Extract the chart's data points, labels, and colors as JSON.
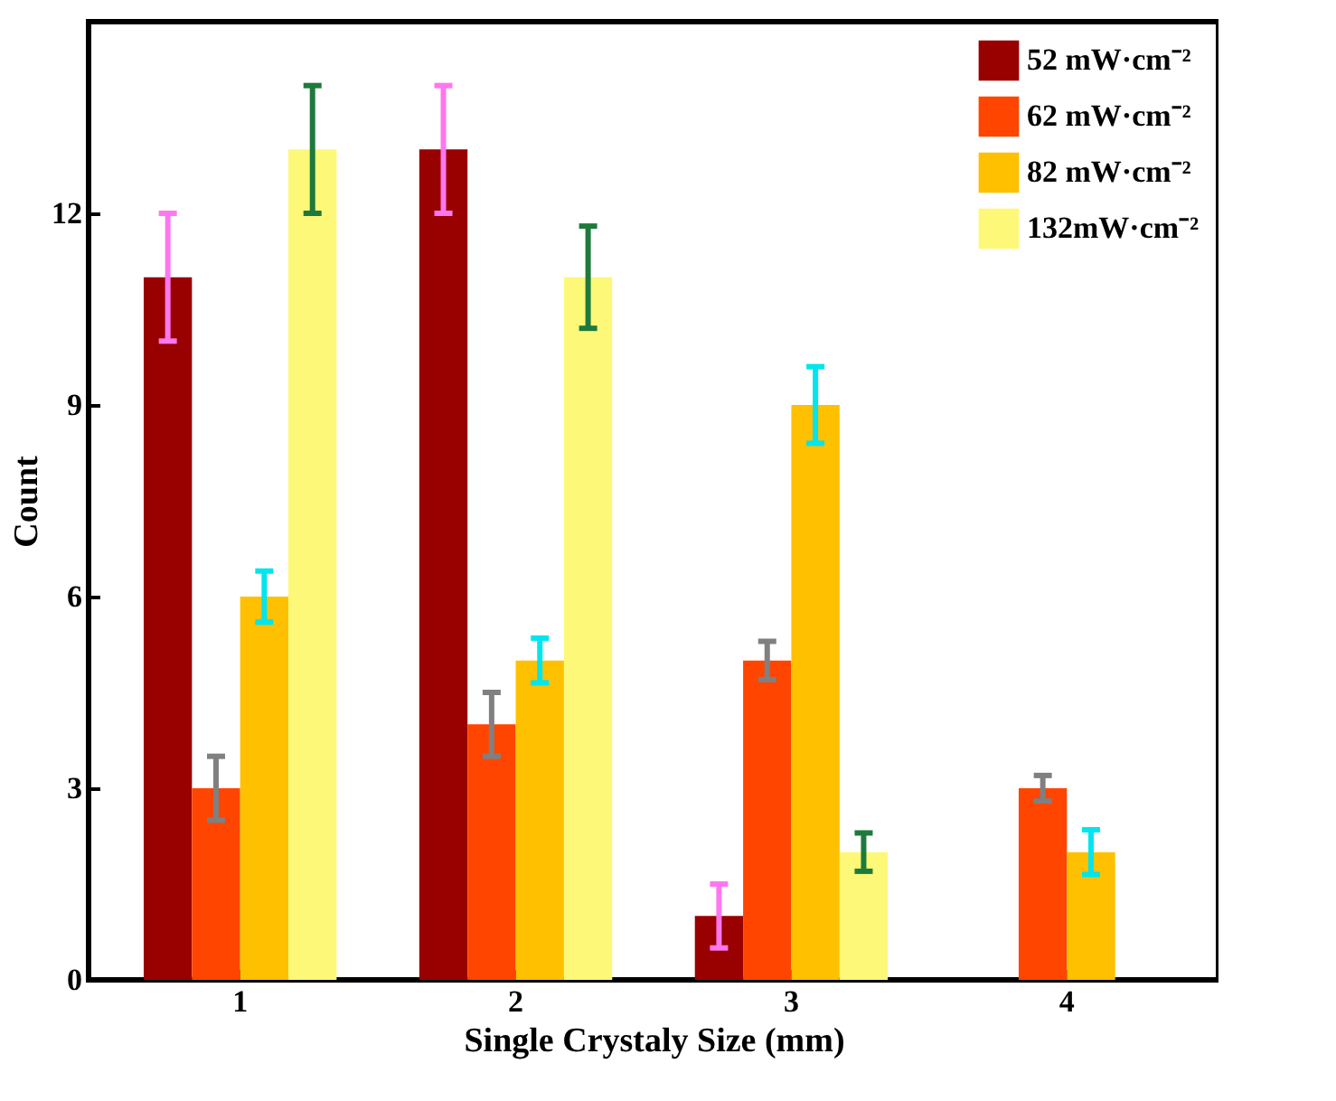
{
  "chart_data": {
    "type": "bar",
    "xlabel": "Single Crystaly Size (mm)",
    "ylabel": "Count",
    "categories": [
      "1",
      "2",
      "3",
      "4"
    ],
    "series": [
      {
        "name": "52 mW·cm⁻²",
        "color": "#990000",
        "values": [
          11,
          13,
          1,
          null
        ],
        "errors": [
          1,
          1,
          0.5,
          null
        ]
      },
      {
        "name": "62 mW·cm⁻²",
        "color": "#ff4500",
        "values": [
          3,
          4,
          5,
          3
        ],
        "errors": [
          0.5,
          0.5,
          0.3,
          0.2
        ]
      },
      {
        "name": "82 mW·cm⁻²",
        "color": "#ffc000",
        "values": [
          6,
          5,
          9,
          2
        ],
        "errors": [
          0.4,
          0.35,
          0.6,
          0.35
        ]
      },
      {
        "name": "132mW·cm⁻²",
        "color": "#fdf878",
        "values": [
          13,
          11,
          2,
          null
        ],
        "errors": [
          1,
          0.8,
          0.3,
          null
        ]
      }
    ],
    "ylim": [
      0,
      15
    ],
    "yticks": [
      0,
      3,
      6,
      9,
      12
    ],
    "grid": false,
    "legend": "top right"
  }
}
